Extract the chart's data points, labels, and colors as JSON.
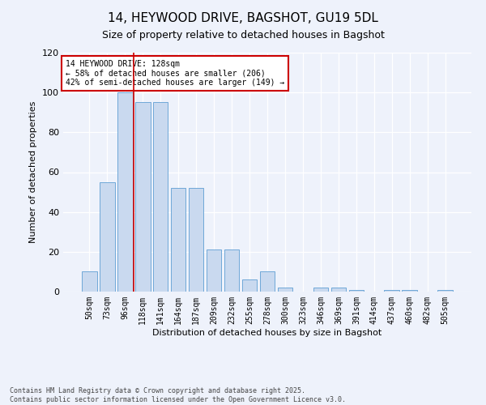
{
  "title_line1": "14, HEYWOOD DRIVE, BAGSHOT, GU19 5DL",
  "title_line2": "Size of property relative to detached houses in Bagshot",
  "xlabel": "Distribution of detached houses by size in Bagshot",
  "ylabel": "Number of detached properties",
  "categories": [
    "50sqm",
    "73sqm",
    "96sqm",
    "118sqm",
    "141sqm",
    "164sqm",
    "187sqm",
    "209sqm",
    "232sqm",
    "255sqm",
    "278sqm",
    "300sqm",
    "323sqm",
    "346sqm",
    "369sqm",
    "391sqm",
    "414sqm",
    "437sqm",
    "460sqm",
    "482sqm",
    "505sqm"
  ],
  "values": [
    10,
    55,
    100,
    95,
    95,
    52,
    52,
    21,
    21,
    6,
    10,
    2,
    0,
    2,
    2,
    1,
    0,
    1,
    1,
    0,
    1
  ],
  "bar_color": "#c9d9ef",
  "bar_edge_color": "#6fa8d8",
  "vline_x": 2.5,
  "vline_color": "#cc0000",
  "annotation_text": "14 HEYWOOD DRIVE: 128sqm\n← 58% of detached houses are smaller (206)\n42% of semi-detached houses are larger (149) →",
  "annotation_box_color": "#cc0000",
  "ylim": [
    0,
    120
  ],
  "yticks": [
    0,
    20,
    40,
    60,
    80,
    100,
    120
  ],
  "footnote": "Contains HM Land Registry data © Crown copyright and database right 2025.\nContains public sector information licensed under the Open Government Licence v3.0.",
  "background_color": "#eef2fb",
  "plot_bg_color": "#eef2fb",
  "title_fontsize": 11,
  "subtitle_fontsize": 9,
  "xlabel_fontsize": 8,
  "ylabel_fontsize": 8,
  "tick_fontsize": 7,
  "footnote_fontsize": 6,
  "annotation_fontsize": 7
}
